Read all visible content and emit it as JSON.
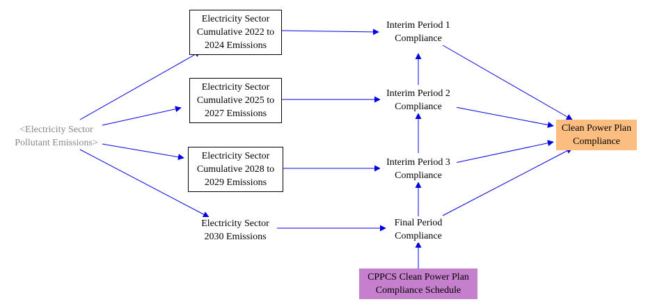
{
  "nodes": {
    "pollutant_emissions": "<Electricity Sector\nPollutant Emissions>",
    "cum_2022_2024": "Electricity Sector\nCumulative 2022 to\n2024 Emissions",
    "cum_2025_2027": "Electricity Sector\nCumulative 2025 to\n2027 Emissions",
    "cum_2028_2029": "Electricity Sector\nCumulative 2028 to\n2029 Emissions",
    "emissions_2030": "Electricity Sector\n2030 Emissions",
    "interim_1": "Interim Period 1\nCompliance",
    "interim_2": "Interim Period 2\nCompliance",
    "interim_3": "Interim Period 3\nCompliance",
    "final_period": "Final Period\nCompliance",
    "clean_power_plan": "Clean Power Plan\nCompliance",
    "cppcs_schedule": "CPPCS Clean Power Plan\nCompliance Schedule"
  },
  "colors": {
    "arrow": "#0000e0",
    "output_node": "#fbbd80",
    "schedule_node": "#c57fcc",
    "shadow_text": "#888888"
  }
}
